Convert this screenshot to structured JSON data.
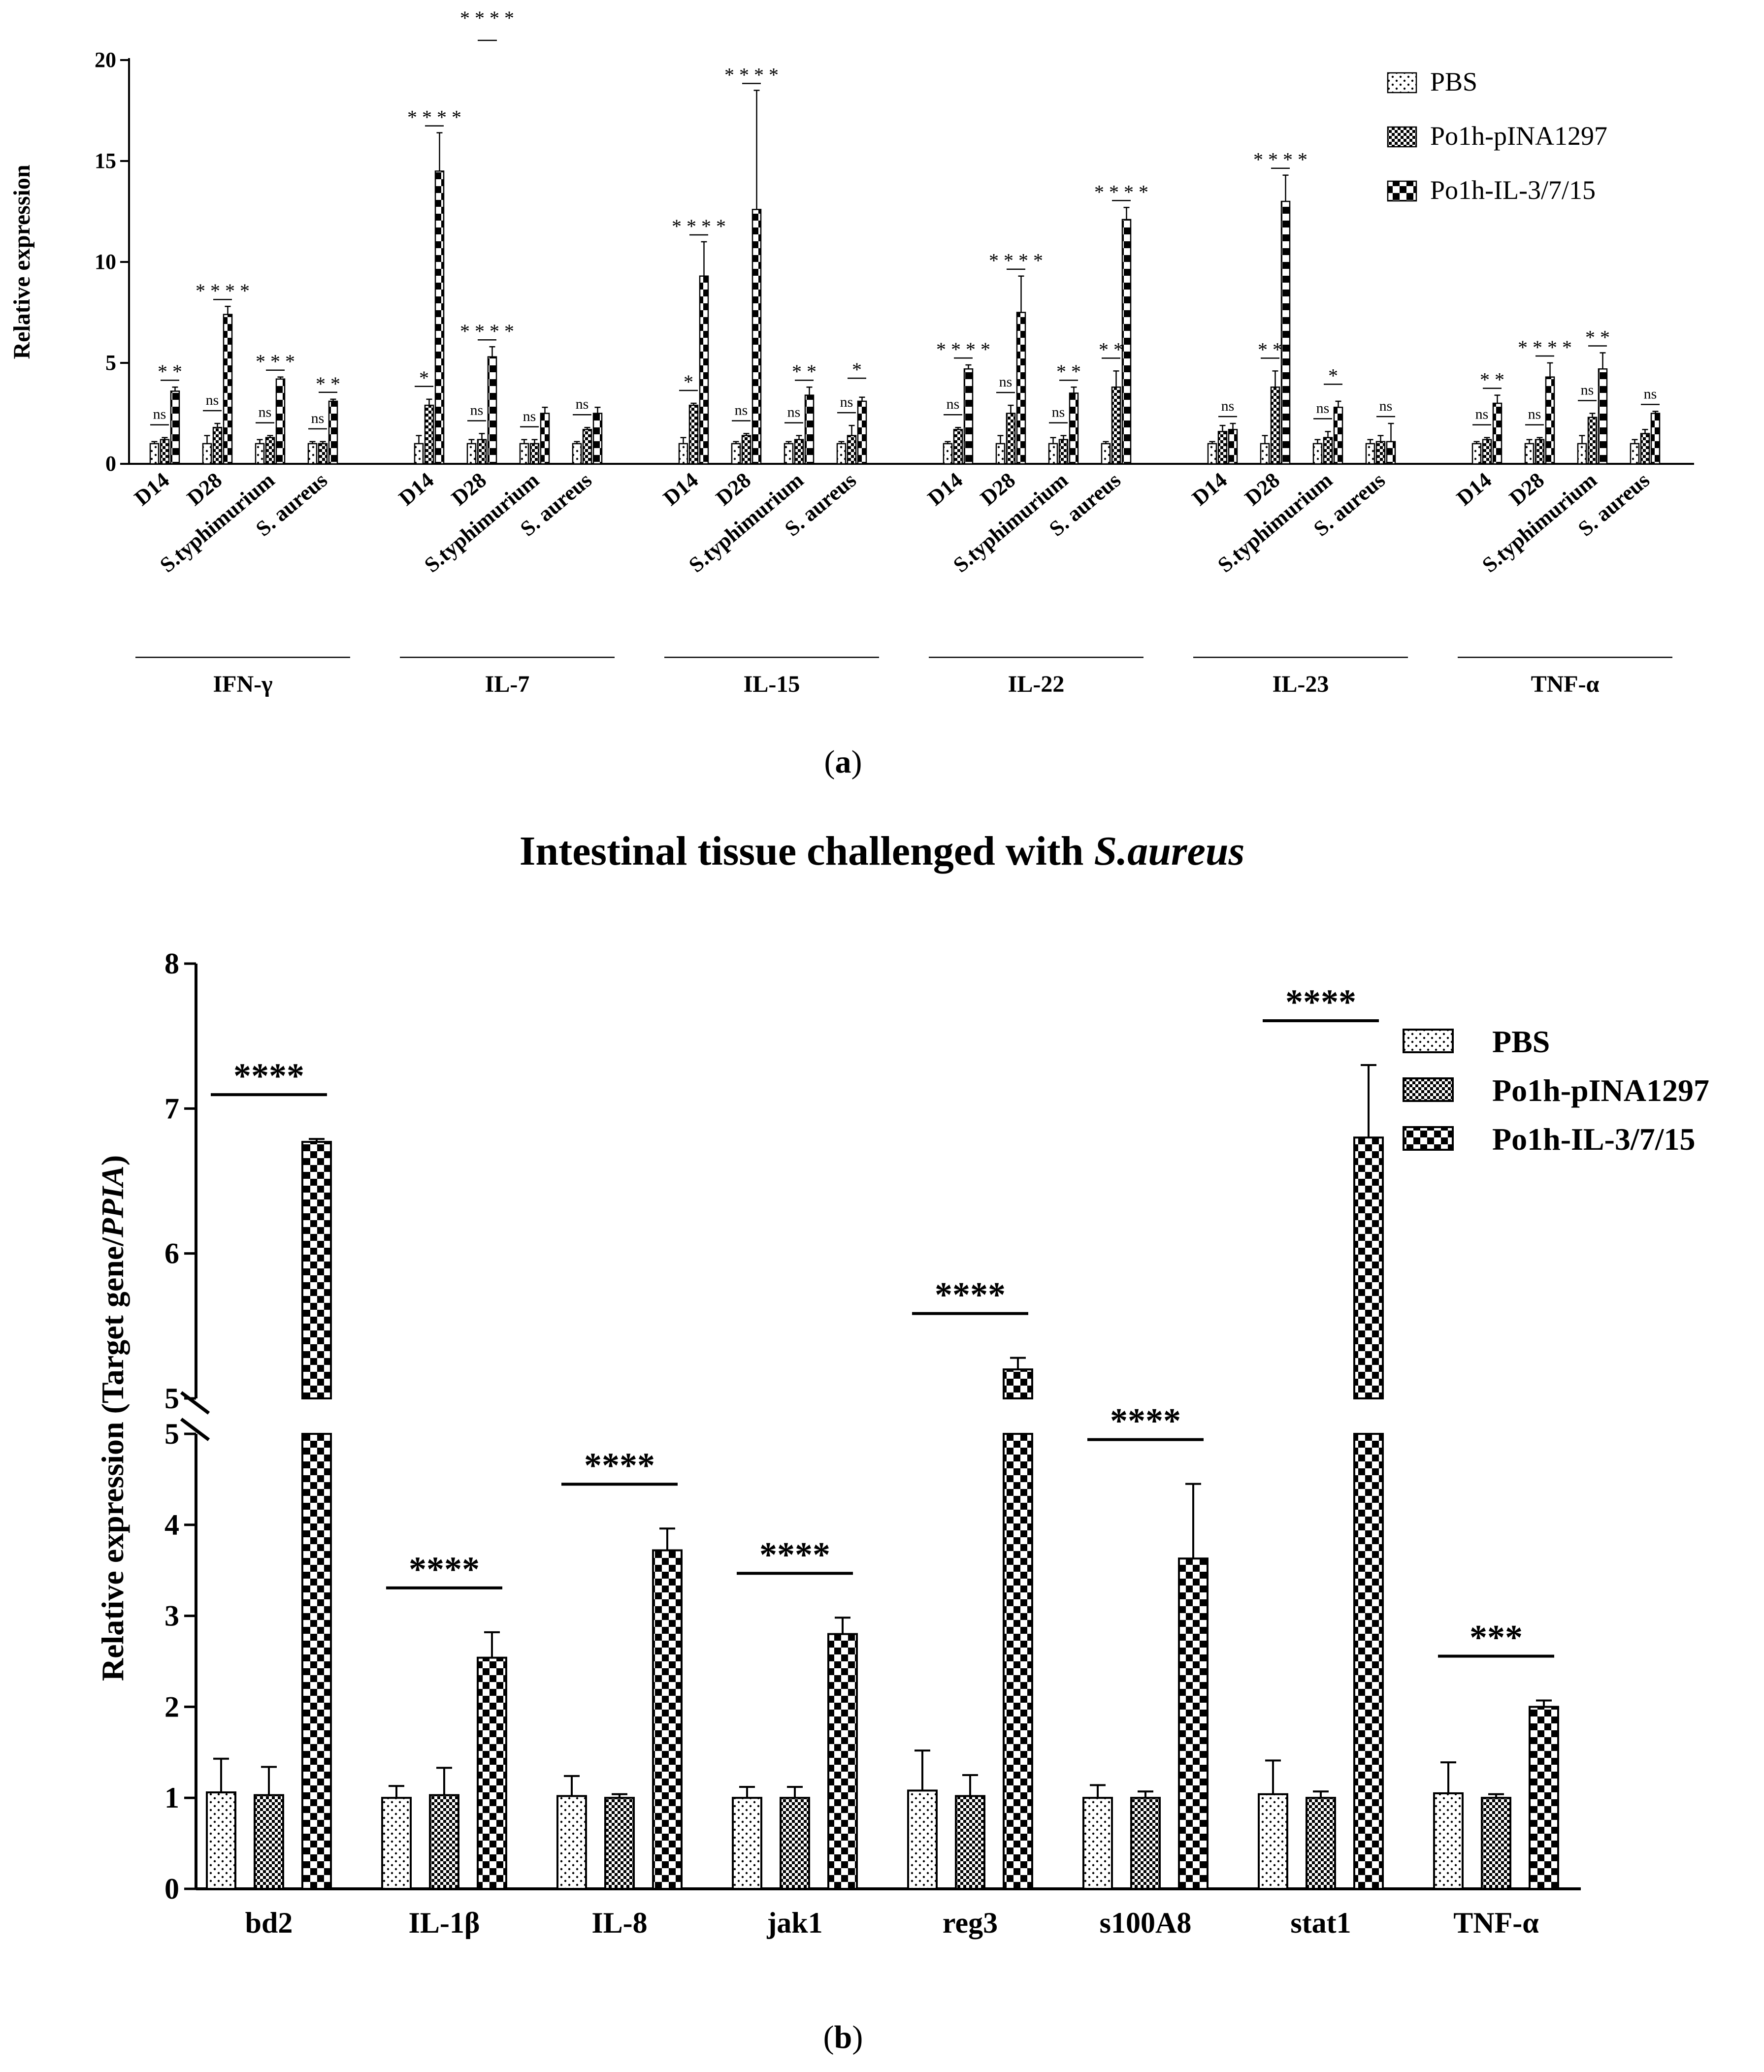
{
  "legend": [
    "PBS",
    "Po1h-pINA1297",
    "Po1h-IL-3/7/15"
  ],
  "chart_a": {
    "caption": "a",
    "ylabel": "Relative expression",
    "ylim": [
      0,
      20
    ],
    "yticks": [
      0,
      5,
      10,
      15,
      20
    ],
    "subcategories": [
      "D14",
      "D28",
      "S.typhimurium",
      "S. aureus"
    ],
    "groups": [
      {
        "name": "IFN-γ",
        "values": [
          [
            1.0,
            1.2,
            3.6
          ],
          [
            1.0,
            1.8,
            7.4
          ],
          [
            1.0,
            1.3,
            4.2
          ],
          [
            1.0,
            1.0,
            3.1
          ]
        ],
        "errors": [
          [
            0.1,
            0.1,
            0.2
          ],
          [
            0.4,
            0.2,
            0.4
          ],
          [
            0.2,
            0.1,
            0.1
          ],
          [
            0.1,
            0.1,
            0.1
          ]
        ],
        "sig": [
          "* *",
          "* * * *",
          "* * *",
          "* *"
        ],
        "sig2": [
          "ns",
          "ns",
          "ns",
          "ns"
        ]
      },
      {
        "name": "IL-7",
        "values": [
          [
            1.0,
            2.9,
            14.5
          ],
          [
            1.0,
            1.2,
            5.3
          ],
          [
            1.0,
            1.0,
            2.5
          ],
          [
            1.0,
            1.7,
            2.5
          ]
        ],
        "errors": [
          [
            0.4,
            0.3,
            1.9
          ],
          [
            0.2,
            0.3,
            0.5
          ],
          [
            0.2,
            0.2,
            0.3
          ],
          [
            0.1,
            0.1,
            0.3
          ]
        ],
        "sig": [
          "* * * *",
          "* * * *",
          "",
          ""
        ],
        "sig2": [
          "*",
          "ns",
          "ns",
          "ns"
        ],
        "topsig": "* * * *"
      },
      {
        "name": "IL-15",
        "values": [
          [
            1.0,
            2.9,
            9.3
          ],
          [
            1.0,
            1.4,
            12.6
          ],
          [
            1.0,
            1.2,
            3.4
          ],
          [
            1.0,
            1.4,
            3.1
          ]
        ],
        "errors": [
          [
            0.3,
            0.1,
            1.7
          ],
          [
            0.1,
            0.1,
            5.9
          ],
          [
            0.1,
            0.2,
            0.4
          ],
          [
            0.1,
            0.5,
            0.2
          ]
        ],
        "sig": [
          "* * * *",
          "* * * *",
          "* *",
          "*"
        ],
        "sig2": [
          "*",
          "ns",
          "ns",
          "ns"
        ]
      },
      {
        "name": "IL-22",
        "values": [
          [
            1.0,
            1.7,
            4.7
          ],
          [
            1.0,
            2.5,
            7.5
          ],
          [
            1.0,
            1.2,
            3.5
          ],
          [
            1.0,
            3.8,
            12.1
          ]
        ],
        "errors": [
          [
            0.1,
            0.1,
            0.2
          ],
          [
            0.4,
            0.4,
            1.8
          ],
          [
            0.3,
            0.2,
            0.3
          ],
          [
            0.1,
            0.8,
            0.6
          ]
        ],
        "sig": [
          "* * * *",
          "* * * *",
          "* *",
          "* * * *"
        ],
        "sig2": [
          "ns",
          "ns",
          "ns",
          "* *"
        ]
      },
      {
        "name": "IL-23",
        "values": [
          [
            1.0,
            1.6,
            1.7
          ],
          [
            1.0,
            3.8,
            13.0
          ],
          [
            1.0,
            1.3,
            2.8
          ],
          [
            1.0,
            1.1,
            1.1
          ]
        ],
        "errors": [
          [
            0.1,
            0.3,
            0.3
          ],
          [
            0.4,
            0.8,
            1.3
          ],
          [
            0.2,
            0.3,
            0.3
          ],
          [
            0.2,
            0.3,
            0.9
          ]
        ],
        "sig": [
          "ns",
          "* * * *",
          "*",
          "ns"
        ],
        "sig2": [
          "",
          "* *",
          "ns",
          ""
        ]
      },
      {
        "name": "TNF-α",
        "values": [
          [
            1.0,
            1.2,
            3.0
          ],
          [
            1.0,
            1.2,
            4.3
          ],
          [
            1.0,
            2.3,
            4.7
          ],
          [
            1.0,
            1.5,
            2.5
          ]
        ],
        "errors": [
          [
            0.1,
            0.1,
            0.4
          ],
          [
            0.2,
            0.1,
            0.7
          ],
          [
            0.4,
            0.2,
            0.8
          ],
          [
            0.2,
            0.2,
            0.1
          ]
        ],
        "sig": [
          "* *",
          "* * * *",
          "* *",
          "ns"
        ],
        "sig2": [
          "ns",
          "ns",
          "ns",
          ""
        ]
      }
    ]
  },
  "chart_b": {
    "caption": "b",
    "title_prefix": "Intestinal tissue challenged with ",
    "title_italic": "S.aureus",
    "ylabel_prefix": "Relative expression (Target gene/",
    "ylabel_italic": "PPIA",
    "ylabel_suffix": ")",
    "lower_ylim": [
      0,
      5
    ],
    "upper_ylim": [
      5,
      8
    ],
    "lower_ticks": [
      0,
      1,
      2,
      3,
      4,
      5
    ],
    "upper_ticks": [
      5,
      6,
      7,
      8
    ],
    "categories": [
      "bd2",
      "IL-1β",
      "IL-8",
      "jak1",
      "reg3",
      "s100A8",
      "stat1",
      "TNF-α"
    ],
    "series": [
      {
        "name": "PBS",
        "values": [
          1.06,
          1.0,
          1.02,
          1.0,
          1.08,
          1.0,
          1.04,
          1.05
        ],
        "errors": [
          0.37,
          0.13,
          0.22,
          0.12,
          0.44,
          0.14,
          0.37,
          0.34
        ]
      },
      {
        "name": "Po1h-pINA1297",
        "values": [
          1.03,
          1.03,
          1.0,
          1.0,
          1.02,
          1.0,
          1.0,
          1.0
        ],
        "errors": [
          0.31,
          0.3,
          0.04,
          0.12,
          0.23,
          0.07,
          0.07,
          0.04
        ]
      },
      {
        "name": "Po1h-IL-3/7/15",
        "values": [
          6.77,
          2.54,
          3.72,
          2.8,
          5.2,
          3.63,
          6.8,
          2.0
        ],
        "errors": [
          0.02,
          0.28,
          0.24,
          0.18,
          0.08,
          0.82,
          0.5,
          0.07
        ]
      }
    ],
    "sig": [
      "****",
      "****",
      "****",
      "****",
      "****",
      "****",
      "****",
      "***"
    ]
  }
}
